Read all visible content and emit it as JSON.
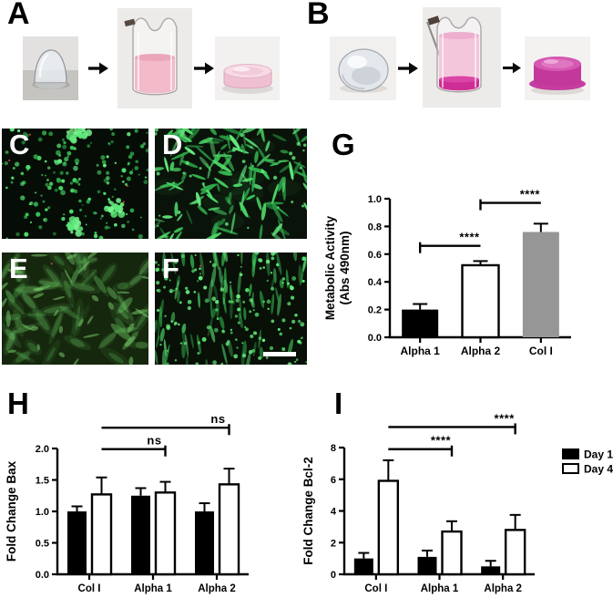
{
  "panel_a": {
    "label": "A",
    "steps": [
      "clear gel droplet",
      "culture insert with pink media",
      "pale pink crosslinked gel disc"
    ]
  },
  "panel_b": {
    "label": "B",
    "steps": [
      "clear gel droplet",
      "culture insert with pink media and magenta pellet",
      "magenta crosslinked gel disc"
    ]
  },
  "micrographs": {
    "c": {
      "label": "C",
      "content": "sparse round green-stained cells with bright clusters on black background"
    },
    "d": {
      "label": "D",
      "content": "dense elongated green spindle-shaped cells"
    },
    "e": {
      "label": "E",
      "content": "elongated green cells with diffuse green haze"
    },
    "f": {
      "label": "F",
      "content": "dense small bright green cells aligned diagonally",
      "scale_bar": true
    }
  },
  "chart_data": [
    {
      "panel": "G",
      "type": "bar",
      "ylabel_lines": [
        "Metabolic Activity",
        "(Abs 490nm)"
      ],
      "categories": [
        "Alpha 1",
        "Alpha 2",
        "Col I"
      ],
      "values": [
        0.2,
        0.52,
        0.76
      ],
      "errors": [
        0.04,
        0.03,
        0.06
      ],
      "bar_colors": [
        "#000000",
        "#ffffff",
        "#969696"
      ],
      "ylim": [
        0,
        1.0
      ],
      "yticks": [
        "0.0",
        "0.2",
        "0.4",
        "0.6",
        "0.8",
        "1.0"
      ],
      "significance": [
        {
          "label": "****",
          "from_index": 0,
          "to_index": 1,
          "y": 0.66,
          "tick_end": "from"
        },
        {
          "label": "****",
          "from_index": 1,
          "to_index": 2,
          "y": 0.97,
          "tick_end": "from"
        }
      ]
    },
    {
      "panel": "H",
      "type": "grouped_bar",
      "ylabel": "Fold Change Bax",
      "categories": [
        "Col I",
        "Alpha 1",
        "Alpha 2"
      ],
      "series": [
        {
          "name": "Day 1",
          "color": "#000000",
          "values": [
            1.0,
            1.25,
            1.0
          ],
          "errors": [
            0.08,
            0.12,
            0.13
          ]
        },
        {
          "name": "Day 4",
          "color": "#ffffff",
          "values": [
            1.27,
            1.3,
            1.43
          ],
          "errors": [
            0.27,
            0.17,
            0.25
          ]
        }
      ],
      "ylim": [
        0,
        2.0
      ],
      "yticks": [
        "0.0",
        "0.5",
        "1.0",
        "1.5",
        "2.0"
      ],
      "significance": [
        {
          "label": "ns",
          "from_index": 0,
          "to_index": 1,
          "y": 1.99,
          "tick_end": "to"
        },
        {
          "label": "ns",
          "from_index": 0,
          "to_index": 2,
          "y": 2.33,
          "tick_end": "to"
        }
      ]
    },
    {
      "panel": "I",
      "type": "grouped_bar",
      "ylabel": "Fold Change Bcl-2",
      "categories": [
        "Col I",
        "Alpha 1",
        "Alpha 2"
      ],
      "series": [
        {
          "name": "Day 1",
          "color": "#000000",
          "values": [
            1.0,
            1.1,
            0.5
          ],
          "errors": [
            0.35,
            0.4,
            0.35
          ]
        },
        {
          "name": "Day 4",
          "color": "#ffffff",
          "values": [
            5.9,
            2.7,
            2.8
          ],
          "errors": [
            1.3,
            0.65,
            0.95
          ]
        }
      ],
      "ylim": [
        0,
        8
      ],
      "yticks": [
        "0",
        "2",
        "4",
        "6",
        "8"
      ],
      "significance": [
        {
          "label": "****",
          "from_index": 0,
          "to_index": 1,
          "y": 7.9,
          "tick_end": "to"
        },
        {
          "label": "****",
          "from_index": 0,
          "to_index": 2,
          "y": 9.3,
          "tick_end": "to"
        }
      ],
      "legend": [
        {
          "label": "Day 1",
          "fill": "#000000"
        },
        {
          "label": "Day 4",
          "fill": "#ffffff"
        }
      ]
    }
  ]
}
